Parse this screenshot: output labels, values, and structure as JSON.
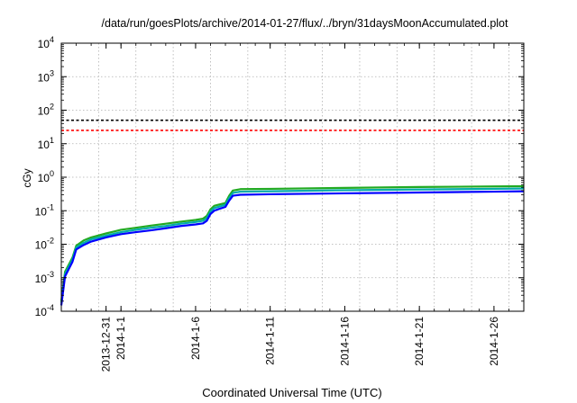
{
  "chart_data": {
    "type": "line",
    "title": "/data/run/goesPlots/archive/2014-01-27/flux/../bryn/31daysMoonAccumulated.plot",
    "xlabel": "Coordinated Universal Time (UTC)",
    "ylabel": "cGy",
    "y_scale": "log",
    "ylim": [
      0.0001,
      10000
    ],
    "xlim": [
      "2013-12-28",
      "2014-01-28"
    ],
    "grid": true,
    "x_ticks": [
      {
        "x": "2013-12-31",
        "label": "2013-12-31"
      },
      {
        "x": "2014-01-01",
        "label": "2014-1-1"
      },
      {
        "x": "2014-01-06",
        "label": "2014-1-6"
      },
      {
        "x": "2014-01-11",
        "label": "2014-1-11"
      },
      {
        "x": "2014-01-16",
        "label": "2014-1-16"
      },
      {
        "x": "2014-01-21",
        "label": "2014-1-21"
      },
      {
        "x": "2014-01-26",
        "label": "2014-1-26"
      }
    ],
    "y_ticks": [
      {
        "value": 0.0001,
        "base": "10",
        "exp": "-4"
      },
      {
        "value": 0.001,
        "base": "10",
        "exp": "-3"
      },
      {
        "value": 0.01,
        "base": "10",
        "exp": "-2"
      },
      {
        "value": 0.1,
        "base": "10",
        "exp": "-1"
      },
      {
        "value": 1,
        "base": "10",
        "exp": "0"
      },
      {
        "value": 10,
        "base": "10",
        "exp": "1"
      },
      {
        "value": 100,
        "base": "10",
        "exp": "2"
      },
      {
        "value": 1000,
        "base": "10",
        "exp": "3"
      },
      {
        "value": 10000,
        "base": "10",
        "exp": "4"
      }
    ],
    "reference_lines": [
      {
        "y": 50,
        "color": "#000000",
        "style": "dashed"
      },
      {
        "y": 25,
        "color": "#ff0000",
        "style": "dashed"
      }
    ],
    "series": [
      {
        "color": "#22aa22",
        "points": [
          [
            "2013-12-28T00:00",
            0.0002
          ],
          [
            "2013-12-28T06:00",
            0.0015
          ],
          [
            "2013-12-28T18:00",
            0.004
          ],
          [
            "2013-12-29T00:00",
            0.009
          ],
          [
            "2013-12-29T12:00",
            0.013
          ],
          [
            "2013-12-30T00:00",
            0.016
          ],
          [
            "2013-12-31T00:00",
            0.021
          ],
          [
            "2014-01-01T00:00",
            0.027
          ],
          [
            "2014-01-02T00:00",
            0.031
          ],
          [
            "2014-01-03T00:00",
            0.036
          ],
          [
            "2014-01-04T00:00",
            0.041
          ],
          [
            "2014-01-05T00:00",
            0.047
          ],
          [
            "2014-01-06T00:00",
            0.053
          ],
          [
            "2014-01-06T12:00",
            0.058
          ],
          [
            "2014-01-06T18:00",
            0.07
          ],
          [
            "2014-01-07T00:00",
            0.11
          ],
          [
            "2014-01-07T06:00",
            0.14
          ],
          [
            "2014-01-07T12:00",
            0.15
          ],
          [
            "2014-01-08T00:00",
            0.17
          ],
          [
            "2014-01-08T06:00",
            0.28
          ],
          [
            "2014-01-08T12:00",
            0.4
          ],
          [
            "2014-01-09T00:00",
            0.44
          ],
          [
            "2014-01-11T00:00",
            0.45
          ],
          [
            "2014-01-16T00:00",
            0.48
          ],
          [
            "2014-01-21T00:00",
            0.51
          ],
          [
            "2014-01-26T00:00",
            0.53
          ],
          [
            "2014-01-28T00:00",
            0.54
          ]
        ]
      },
      {
        "color": "#00aaaa",
        "points": [
          [
            "2013-12-28T00:00",
            0.00018
          ],
          [
            "2013-12-28T06:00",
            0.0013
          ],
          [
            "2013-12-28T18:00",
            0.0035
          ],
          [
            "2013-12-29T00:00",
            0.008
          ],
          [
            "2013-12-29T12:00",
            0.011
          ],
          [
            "2013-12-30T00:00",
            0.014
          ],
          [
            "2013-12-31T00:00",
            0.018
          ],
          [
            "2014-01-01T00:00",
            0.023
          ],
          [
            "2014-01-02T00:00",
            0.027
          ],
          [
            "2014-01-03T00:00",
            0.031
          ],
          [
            "2014-01-04T00:00",
            0.035
          ],
          [
            "2014-01-05T00:00",
            0.041
          ],
          [
            "2014-01-06T00:00",
            0.046
          ],
          [
            "2014-01-06T12:00",
            0.05
          ],
          [
            "2014-01-06T18:00",
            0.06
          ],
          [
            "2014-01-07T00:00",
            0.095
          ],
          [
            "2014-01-07T06:00",
            0.12
          ],
          [
            "2014-01-07T12:00",
            0.13
          ],
          [
            "2014-01-08T00:00",
            0.15
          ],
          [
            "2014-01-08T06:00",
            0.24
          ],
          [
            "2014-01-08T12:00",
            0.34
          ],
          [
            "2014-01-09T00:00",
            0.37
          ],
          [
            "2014-01-11T00:00",
            0.38
          ],
          [
            "2014-01-16T00:00",
            0.41
          ],
          [
            "2014-01-21T00:00",
            0.43
          ],
          [
            "2014-01-26T00:00",
            0.45
          ],
          [
            "2014-01-28T00:00",
            0.46
          ]
        ]
      },
      {
        "color": "#0000ff",
        "points": [
          [
            "2013-12-28T00:00",
            0.00015
          ],
          [
            "2013-12-28T06:00",
            0.0011
          ],
          [
            "2013-12-28T18:00",
            0.003
          ],
          [
            "2013-12-29T00:00",
            0.007
          ],
          [
            "2013-12-29T12:00",
            0.0095
          ],
          [
            "2013-12-30T00:00",
            0.012
          ],
          [
            "2013-12-31T00:00",
            0.016
          ],
          [
            "2014-01-01T00:00",
            0.02
          ],
          [
            "2014-01-02T00:00",
            0.023
          ],
          [
            "2014-01-03T00:00",
            0.026
          ],
          [
            "2014-01-04T00:00",
            0.03
          ],
          [
            "2014-01-05T00:00",
            0.035
          ],
          [
            "2014-01-06T00:00",
            0.039
          ],
          [
            "2014-01-06T12:00",
            0.042
          ],
          [
            "2014-01-06T18:00",
            0.05
          ],
          [
            "2014-01-07T00:00",
            0.08
          ],
          [
            "2014-01-07T06:00",
            0.1
          ],
          [
            "2014-01-07T12:00",
            0.11
          ],
          [
            "2014-01-08T00:00",
            0.13
          ],
          [
            "2014-01-08T06:00",
            0.2
          ],
          [
            "2014-01-08T12:00",
            0.28
          ],
          [
            "2014-01-09T00:00",
            0.3
          ],
          [
            "2014-01-11T00:00",
            0.31
          ],
          [
            "2014-01-16T00:00",
            0.33
          ],
          [
            "2014-01-21T00:00",
            0.35
          ],
          [
            "2014-01-26T00:00",
            0.37
          ],
          [
            "2014-01-28T00:00",
            0.38
          ]
        ]
      }
    ]
  }
}
